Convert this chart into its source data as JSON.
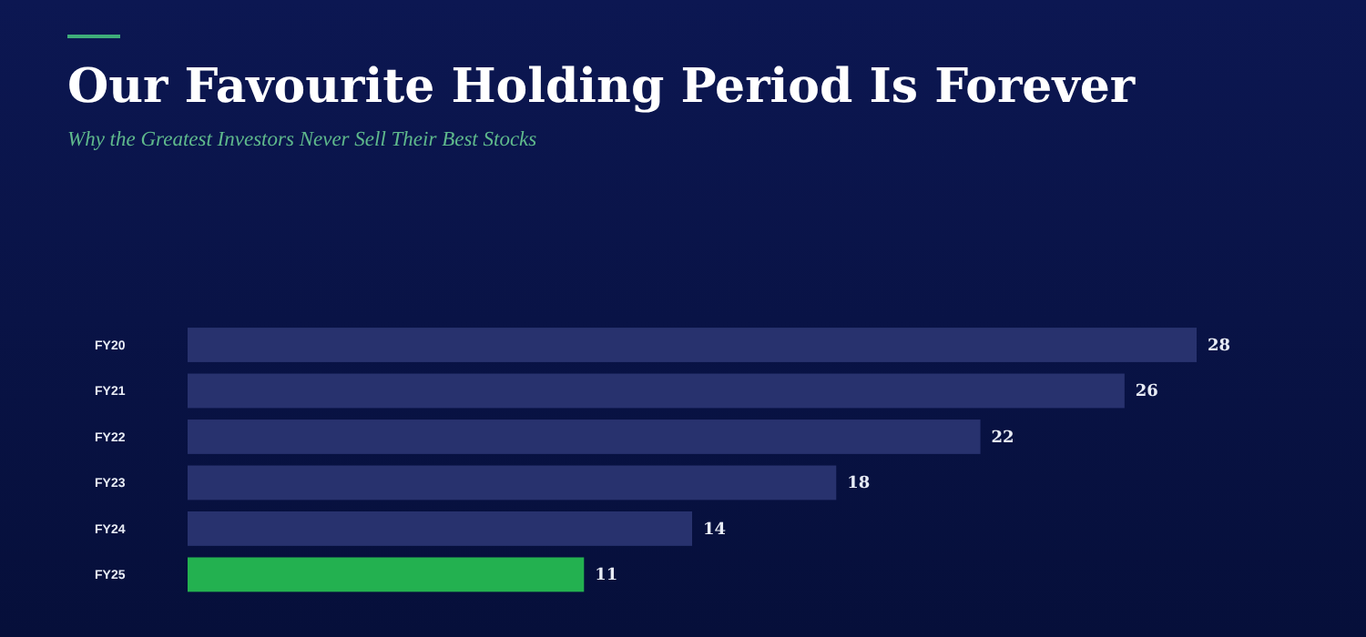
{
  "chart_data": {
    "type": "bar",
    "orientation": "horizontal",
    "title": "Our Favourite Holding Period Is Forever",
    "subtitle": "Why the Greatest Investors Never Sell Their Best Stocks",
    "categories": [
      "FY20",
      "FY21",
      "FY22",
      "FY23",
      "FY24",
      "FY25"
    ],
    "values": [
      28,
      26,
      22,
      18,
      14,
      11
    ],
    "colors": [
      "#28326e",
      "#28326e",
      "#28326e",
      "#28326e",
      "#28326e",
      "#23b150"
    ],
    "data_labels": true
  }
}
